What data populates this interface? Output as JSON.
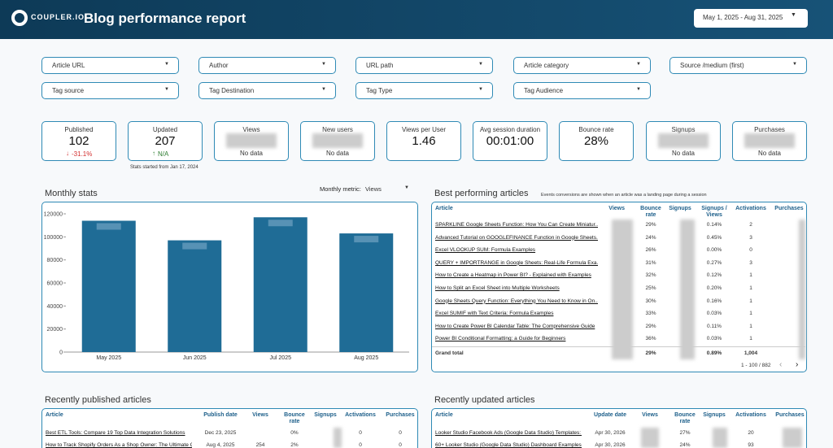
{
  "header": {
    "logo": "COUPLER.IO",
    "title": "Blog performance report",
    "date_range": "May 1, 2025 - Aug 31, 2025"
  },
  "filters": [
    "Article URL",
    "Author",
    "URL path",
    "Article category",
    "Source /medium (first)",
    "Tag source",
    "Tag Destination",
    "Tag Type",
    "Tag Audience"
  ],
  "kpis": [
    {
      "label": "Published",
      "value": "102",
      "change": "-31.1%"
    },
    {
      "label": "Updated",
      "value": "207",
      "change": "N/A",
      "note": "Stats started from Jan 17, 2024"
    },
    {
      "label": "Views",
      "value": "No data"
    },
    {
      "label": "New users",
      "value": "No data"
    },
    {
      "label": "Views per User",
      "value": "1.46"
    },
    {
      "label": "Avg session duration",
      "value": "00:01:00"
    },
    {
      "label": "Bounce rate",
      "value": "28%"
    },
    {
      "label": "Signups",
      "value": "No data"
    },
    {
      "label": "Purchases",
      "value": "No data"
    }
  ],
  "monthly_stats": {
    "title": "Monthly stats",
    "metric_label": "Monthly metric:",
    "metric": "Views"
  },
  "chart_data": {
    "type": "bar",
    "categories": [
      "May 2025",
      "Jun 2025",
      "Jul 2025",
      "Aug 2025"
    ],
    "values": [
      114000,
      97000,
      117000,
      103000
    ],
    "color": "#1f6c96",
    "ylim": [
      0,
      120000
    ],
    "yticks": [
      0,
      20000,
      40000,
      60000,
      80000,
      100000,
      120000
    ]
  },
  "best_articles": {
    "title": "Best performing articles",
    "note": "Events conversions are shown when an article was a landing page during a session",
    "columns": [
      "Article",
      "Views",
      "Bounce rate",
      "Signups",
      "Signups / Views",
      "Activations",
      "Purchases"
    ],
    "rows": [
      {
        "article": "SPARKLINE Google Sheets Function: How You Can Create Miniatur...",
        "bounce_rate": "29%",
        "signups_per_views": "0.14%",
        "activations": "2"
      },
      {
        "article": "Advanced Tutorial on GOOGLEFINANCE Function in Google Sheets...",
        "bounce_rate": "24%",
        "signups_per_views": "0.45%",
        "activations": "3"
      },
      {
        "article": "Excel VLOOKUP SUM: Formula Examples",
        "bounce_rate": "26%",
        "signups_per_views": "0.00%",
        "activations": "0"
      },
      {
        "article": "QUERY + IMPORTRANGE in Google Sheets: Real-Life Formula Exa...",
        "bounce_rate": "31%",
        "signups_per_views": "0.27%",
        "activations": "3"
      },
      {
        "article": "How to Create a Heatmap in Power BI? - Explained with Examples",
        "bounce_rate": "32%",
        "signups_per_views": "0.12%",
        "activations": "1"
      },
      {
        "article": "How to Split an Excel Sheet into Multiple Worksheets",
        "bounce_rate": "25%",
        "signups_per_views": "0.20%",
        "activations": "1"
      },
      {
        "article": "Google Sheets Query Function: Everything You Need to Know in On...",
        "bounce_rate": "30%",
        "signups_per_views": "0.16%",
        "activations": "1"
      },
      {
        "article": "Excel SUMIF with Text Criteria: Formula Examples",
        "bounce_rate": "33%",
        "signups_per_views": "0.03%",
        "activations": "1"
      },
      {
        "article": "How to Create Power BI Calendar Table: The Comprehensive Guide",
        "bounce_rate": "29%",
        "signups_per_views": "0.11%",
        "activations": "1"
      },
      {
        "article": "Power BI Conditional Formatting: a Guide for Beginners",
        "bounce_rate": "36%",
        "signups_per_views": "0.03%",
        "activations": "1"
      }
    ],
    "total": {
      "article": "Grand total",
      "bounce_rate": "29%",
      "signups_per_views": "0.89%",
      "activations": "1,004"
    },
    "pagination": "1 - 100 / 882"
  },
  "recently_published": {
    "title": "Recently published articles",
    "columns": [
      "Article",
      "Publish date",
      "Views",
      "Bounce rate",
      "Signups",
      "Activations",
      "Purchases"
    ],
    "rows": [
      {
        "article": "Best ETL Tools: Compare 19 Top Data Integration Solutions",
        "date": "Dec 23, 2025",
        "bounce_rate": "0%",
        "activations": "0",
        "purchases": "0"
      },
      {
        "article": "How to Track Shopify Orders As a Shop Owner: The Ultimate G...",
        "date": "Aug 4, 2025",
        "views": "254",
        "bounce_rate": "2%",
        "activations": "0",
        "purchases": "0"
      }
    ]
  },
  "recently_updated": {
    "title": "Recently updated articles",
    "columns": [
      "Article",
      "Update date",
      "Views",
      "Bounce rate",
      "Signups",
      "Activations",
      "Purchases"
    ],
    "rows": [
      {
        "article": "Looker Studio Facebook Ads (Google Data Studio) Templates: ...",
        "date": "Apr 30, 2026",
        "bounce_rate": "27%",
        "activations": "20"
      },
      {
        "article": "60+ Looker Studio (Google Data Studio) Dashboard Examples ...",
        "date": "Apr 30, 2026",
        "bounce_rate": "24%",
        "activations": "93"
      }
    ]
  }
}
